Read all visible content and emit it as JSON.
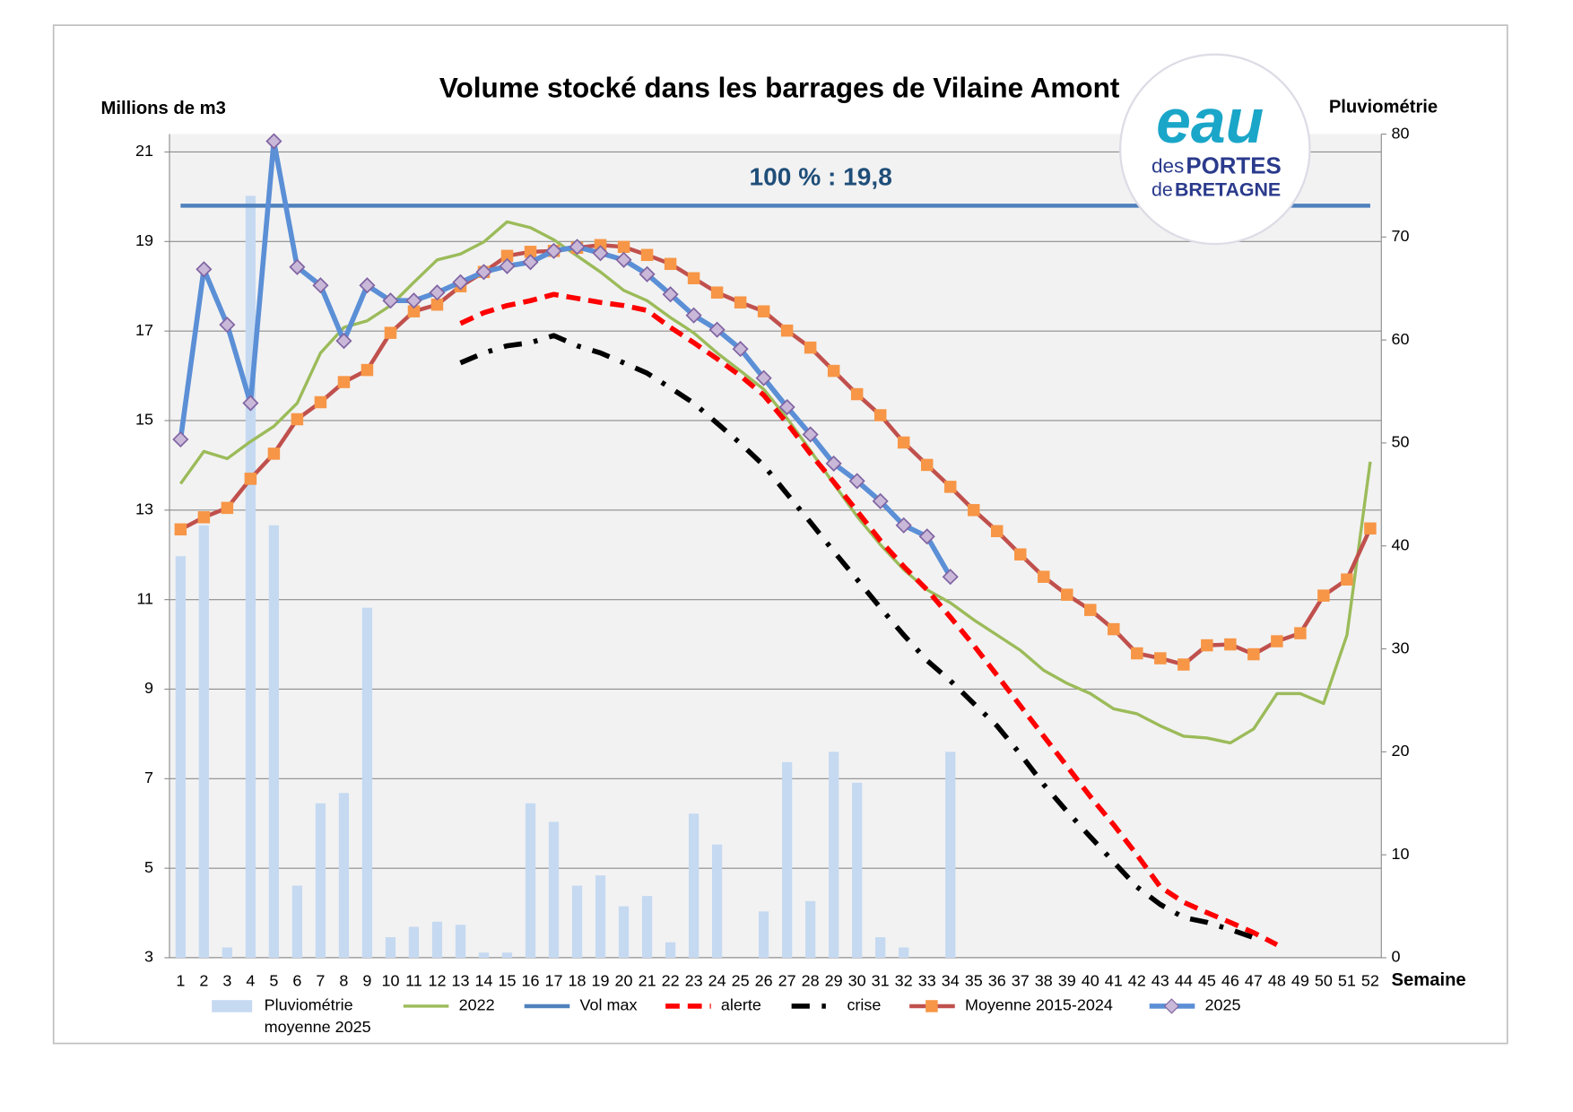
{
  "chart_data": {
    "type": "line",
    "title": "Volume stocké dans les barrages de Vilaine Amont",
    "y_label": "Millions de m3",
    "y2_label": "Pluviométrie",
    "x_label": "Semaine",
    "annotation": "100 % : 19,8",
    "logo": {
      "word": "eau",
      "line1a": "des",
      "line1b": "PORTES",
      "line2a": "de",
      "line2b": "BRETAGNE"
    },
    "categories": [
      1,
      2,
      3,
      4,
      5,
      6,
      7,
      8,
      9,
      10,
      11,
      12,
      13,
      14,
      15,
      16,
      17,
      18,
      19,
      20,
      21,
      22,
      23,
      24,
      25,
      26,
      27,
      28,
      29,
      30,
      31,
      32,
      33,
      34,
      35,
      36,
      37,
      38,
      39,
      40,
      41,
      42,
      43,
      44,
      45,
      46,
      47,
      48,
      49,
      50,
      51,
      52
    ],
    "ylim": [
      3,
      21.4
    ],
    "yticks": [
      3,
      5,
      7,
      9,
      11,
      13,
      15,
      17,
      19,
      21
    ],
    "y2lim": [
      0,
      80
    ],
    "y2ticks": [
      0,
      10,
      20,
      30,
      40,
      50,
      60,
      70,
      80
    ],
    "grid": true,
    "legend": "bottom",
    "series": [
      {
        "name": "Pluviométrie moyenne 2025",
        "type": "bar",
        "axis": "y2",
        "color": "#c5d9f1",
        "values": [
          39,
          42,
          1,
          74,
          42,
          7,
          15,
          16,
          34,
          2,
          3,
          3.5,
          3.2,
          0.5,
          0.5,
          15,
          13.2,
          7,
          8,
          5,
          6,
          1.5,
          14,
          11,
          0,
          4.5,
          19,
          5.5,
          20,
          17,
          2,
          1,
          0,
          20,
          null,
          null,
          null,
          null,
          null,
          null,
          null,
          null,
          null,
          null,
          null,
          null,
          null,
          null,
          null,
          null,
          null,
          null
        ]
      },
      {
        "name": "2022",
        "type": "line",
        "color": "#9bbb59",
        "width": 3,
        "values": [
          13.59,
          14.31,
          14.15,
          14.53,
          14.87,
          15.39,
          16.51,
          17.08,
          17.23,
          17.57,
          18.09,
          18.59,
          18.72,
          18.99,
          19.44,
          19.31,
          19.04,
          18.68,
          18.32,
          17.91,
          17.68,
          17.3,
          16.96,
          16.51,
          16.11,
          15.7,
          15.05,
          14.33,
          13.59,
          12.86,
          12.23,
          11.67,
          11.22,
          10.93,
          10.55,
          10.21,
          9.87,
          9.42,
          9.13,
          8.9,
          8.56,
          8.45,
          8.18,
          7.95,
          7.91,
          7.8,
          8.11,
          8.9,
          8.9,
          8.68,
          10.21,
          14.08
        ]
      },
      {
        "name": "Vol max",
        "type": "line",
        "color": "#4f81bd",
        "width": 4,
        "values": [
          19.8,
          19.8,
          19.8,
          19.8,
          19.8,
          19.8,
          19.8,
          19.8,
          19.8,
          19.8,
          19.8,
          19.8,
          19.8,
          19.8,
          19.8,
          19.8,
          19.8,
          19.8,
          19.8,
          19.8,
          19.8,
          19.8,
          19.8,
          19.8,
          19.8,
          19.8,
          19.8,
          19.8,
          19.8,
          19.8,
          19.8,
          19.8,
          19.8,
          19.8,
          19.8,
          19.8,
          19.8,
          19.8,
          19.8,
          19.8,
          19.8,
          19.8,
          19.8,
          19.8,
          19.8,
          19.8,
          19.8,
          19.8,
          19.8,
          19.8,
          19.8,
          19.8
        ]
      },
      {
        "name": "alerte",
        "type": "line",
        "color": "#ff0000",
        "width": 5,
        "dash": "14 8",
        "values": [
          null,
          null,
          null,
          null,
          null,
          null,
          null,
          null,
          null,
          null,
          null,
          null,
          17.17,
          17.41,
          17.57,
          17.68,
          17.82,
          17.73,
          17.64,
          17.57,
          17.46,
          17.08,
          16.74,
          16.38,
          16.0,
          15.57,
          14.94,
          14.26,
          13.63,
          12.98,
          12.32,
          11.74,
          11.22,
          10.61,
          9.98,
          9.31,
          8.63,
          7.95,
          7.28,
          6.6,
          5.97,
          5.3,
          4.58,
          4.24,
          4.01,
          3.79,
          3.56,
          3.29,
          null,
          null,
          null,
          null
        ]
      },
      {
        "name": "crise",
        "type": "line",
        "color": "#000000",
        "width": 5,
        "dash": "18 12 4 12",
        "values": [
          null,
          null,
          null,
          null,
          null,
          null,
          null,
          null,
          null,
          null,
          null,
          null,
          16.29,
          16.51,
          16.67,
          16.74,
          16.9,
          16.67,
          16.51,
          16.29,
          16.06,
          15.73,
          15.39,
          14.94,
          14.49,
          14.0,
          13.36,
          12.73,
          12.08,
          11.45,
          10.82,
          10.21,
          9.64,
          9.19,
          8.68,
          8.18,
          7.55,
          6.87,
          6.27,
          5.7,
          5.14,
          4.58,
          4.19,
          3.9,
          3.79,
          3.63,
          3.45,
          null,
          null,
          null,
          null,
          null
        ]
      },
      {
        "name": "Moyenne 2015-2024",
        "type": "line",
        "color": "#c0504d",
        "width": 4,
        "marker": "square",
        "marker_color": "#f79646",
        "values": [
          12.57,
          12.84,
          13.05,
          13.7,
          14.26,
          15.03,
          15.41,
          15.86,
          16.13,
          16.96,
          17.44,
          17.59,
          18.0,
          18.32,
          18.68,
          18.77,
          18.79,
          18.86,
          18.92,
          18.88,
          18.7,
          18.5,
          18.18,
          17.86,
          17.64,
          17.44,
          17.01,
          16.63,
          16.11,
          15.59,
          15.12,
          14.51,
          14.01,
          13.52,
          13.0,
          12.53,
          12.01,
          11.51,
          11.11,
          10.77,
          10.34,
          9.8,
          9.69,
          9.55,
          9.98,
          10.0,
          9.78,
          10.07,
          10.25,
          11.09,
          11.45,
          12.59
        ]
      },
      {
        "name": "2025",
        "type": "line",
        "color": "#5b8fd6",
        "width": 5,
        "marker": "diamond",
        "marker_color": "#c9b8d8",
        "values": [
          14.58,
          18.38,
          17.14,
          15.39,
          21.24,
          18.43,
          18.02,
          16.78,
          18.02,
          17.68,
          17.68,
          17.86,
          18.09,
          18.32,
          18.45,
          18.54,
          18.79,
          18.88,
          18.74,
          18.59,
          18.27,
          17.82,
          17.35,
          17.03,
          16.6,
          15.95,
          15.3,
          14.69,
          14.04,
          13.65,
          13.2,
          12.66,
          12.41,
          11.51,
          null,
          null,
          null,
          null,
          null,
          null,
          null,
          null,
          null,
          null,
          null,
          null,
          null,
          null,
          null,
          null,
          null,
          null
        ]
      }
    ]
  }
}
